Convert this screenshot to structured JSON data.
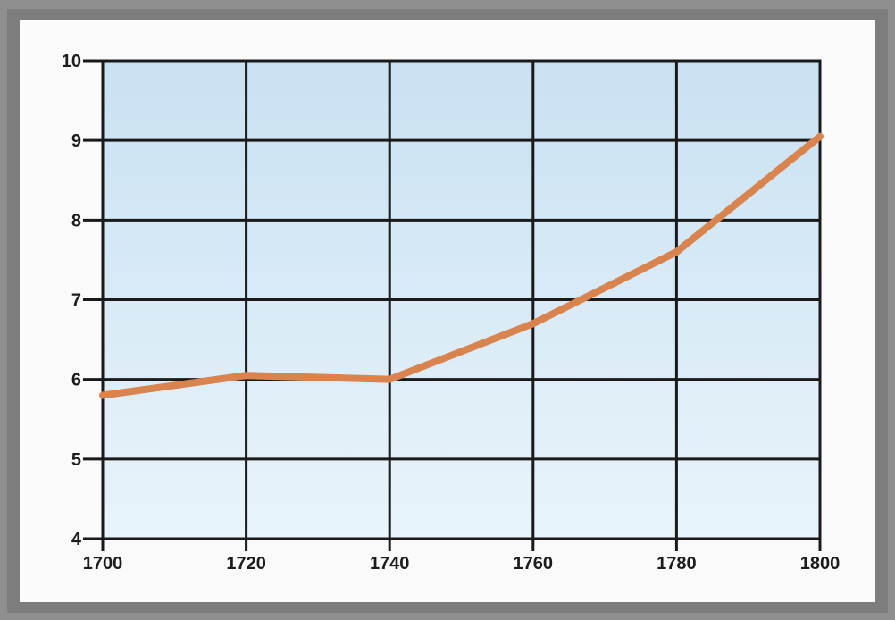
{
  "chart_data": {
    "type": "line",
    "title": "",
    "xlabel": "",
    "ylabel": "",
    "x_ticks": [
      "1700",
      "1720",
      "1740",
      "1760",
      "1780",
      "1800"
    ],
    "y_ticks": [
      "4",
      "5",
      "6",
      "7",
      "8",
      "9",
      "10"
    ],
    "xlim": [
      1700,
      1800
    ],
    "ylim": [
      4,
      10
    ],
    "grid": true,
    "series": [
      {
        "x": [
          1700,
          1720,
          1740,
          1760,
          1780,
          1800
        ],
        "y": [
          5.8,
          6.05,
          6.0,
          6.7,
          7.6,
          9.05
        ]
      }
    ],
    "colors": {
      "line": "#d9844f",
      "plot_background_top": "#c9e1f2",
      "plot_background_bottom": "#e9f4fb",
      "grid": "#1a1a1a"
    }
  }
}
